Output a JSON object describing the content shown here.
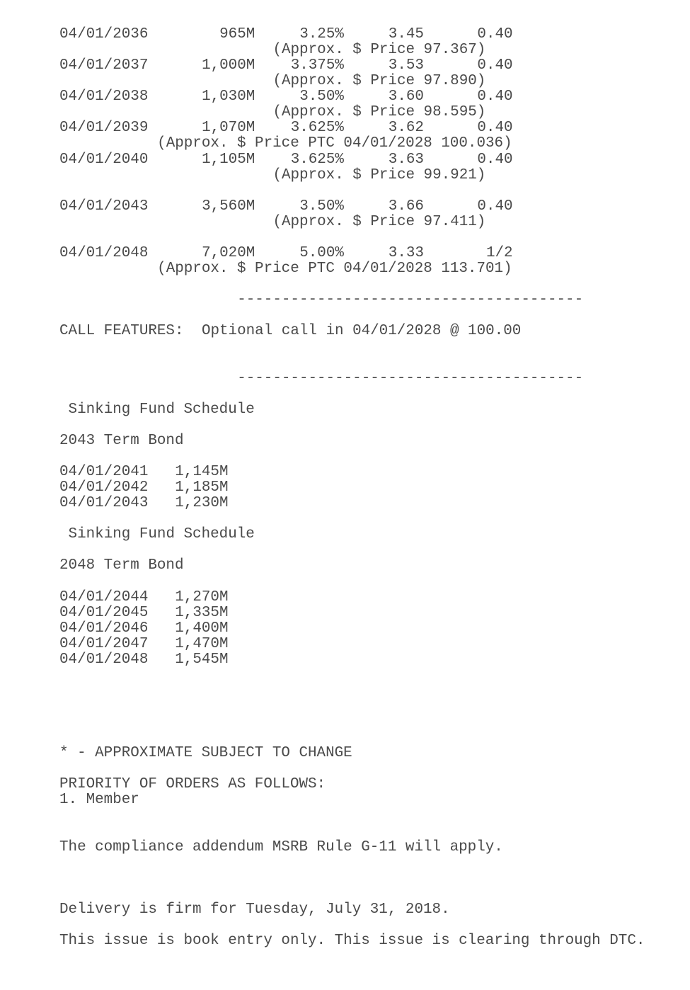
{
  "maturities": [
    {
      "date": "04/01/2036",
      "amount": "965M",
      "coupon": "3.25%",
      "yield": "3.45",
      "takedown": "0.40",
      "price_note": "(Approx. $ Price 97.367)",
      "ptc": false
    },
    {
      "date": "04/01/2037",
      "amount": "1,000M",
      "coupon": "3.375%",
      "yield": "3.53",
      "takedown": "0.40",
      "price_note": "(Approx. $ Price 97.890)",
      "ptc": false
    },
    {
      "date": "04/01/2038",
      "amount": "1,030M",
      "coupon": "3.50%",
      "yield": "3.60",
      "takedown": "0.40",
      "price_note": "(Approx. $ Price 98.595)",
      "ptc": false
    },
    {
      "date": "04/01/2039",
      "amount": "1,070M",
      "coupon": "3.625%",
      "yield": "3.62",
      "takedown": "0.40",
      "price_note": "(Approx. $ Price PTC 04/01/2028 100.036)",
      "ptc": true
    },
    {
      "date": "04/01/2040",
      "amount": "1,105M",
      "coupon": "3.625%",
      "yield": "3.63",
      "takedown": "0.40",
      "price_note": "(Approx. $ Price 99.921)",
      "ptc": false
    },
    {
      "date": "04/01/2043",
      "amount": "3,560M",
      "coupon": "3.50%",
      "yield": "3.66",
      "takedown": "0.40",
      "price_note": "(Approx. $ Price 97.411)",
      "ptc": false
    },
    {
      "date": "04/01/2048",
      "amount": "7,020M",
      "coupon": "5.00%",
      "yield": "3.33",
      "takedown": "1/2",
      "price_note": "(Approx. $ Price PTC 04/01/2028 113.701)",
      "ptc": true
    }
  ],
  "divider": "---------------------------------------",
  "call_features": {
    "label": "CALL FEATURES:",
    "text": "Optional call in 04/01/2028 @ 100.00"
  },
  "sinking_funds": [
    {
      "heading": "Sinking Fund Schedule",
      "term": "2043 Term Bond",
      "items": [
        {
          "date": "04/01/2041",
          "amount": "1,145M"
        },
        {
          "date": "04/01/2042",
          "amount": "1,185M"
        },
        {
          "date": "04/01/2043",
          "amount": "1,230M"
        }
      ]
    },
    {
      "heading": "Sinking Fund Schedule",
      "term": "2048 Term Bond",
      "items": [
        {
          "date": "04/01/2044",
          "amount": "1,270M"
        },
        {
          "date": "04/01/2045",
          "amount": "1,335M"
        },
        {
          "date": "04/01/2046",
          "amount": "1,400M"
        },
        {
          "date": "04/01/2047",
          "amount": "1,470M"
        },
        {
          "date": "04/01/2048",
          "amount": "1,545M"
        }
      ]
    }
  ],
  "footnote": "* - APPROXIMATE SUBJECT TO CHANGE",
  "priority": {
    "heading": "PRIORITY OF ORDERS AS FOLLOWS:",
    "items": [
      "1. Member"
    ]
  },
  "compliance": "The compliance addendum MSRB Rule G-11 will apply.",
  "delivery": "Delivery is firm for Tuesday, July 31, 2018.",
  "book_entry": "This issue is book entry only. This issue is clearing through DTC."
}
